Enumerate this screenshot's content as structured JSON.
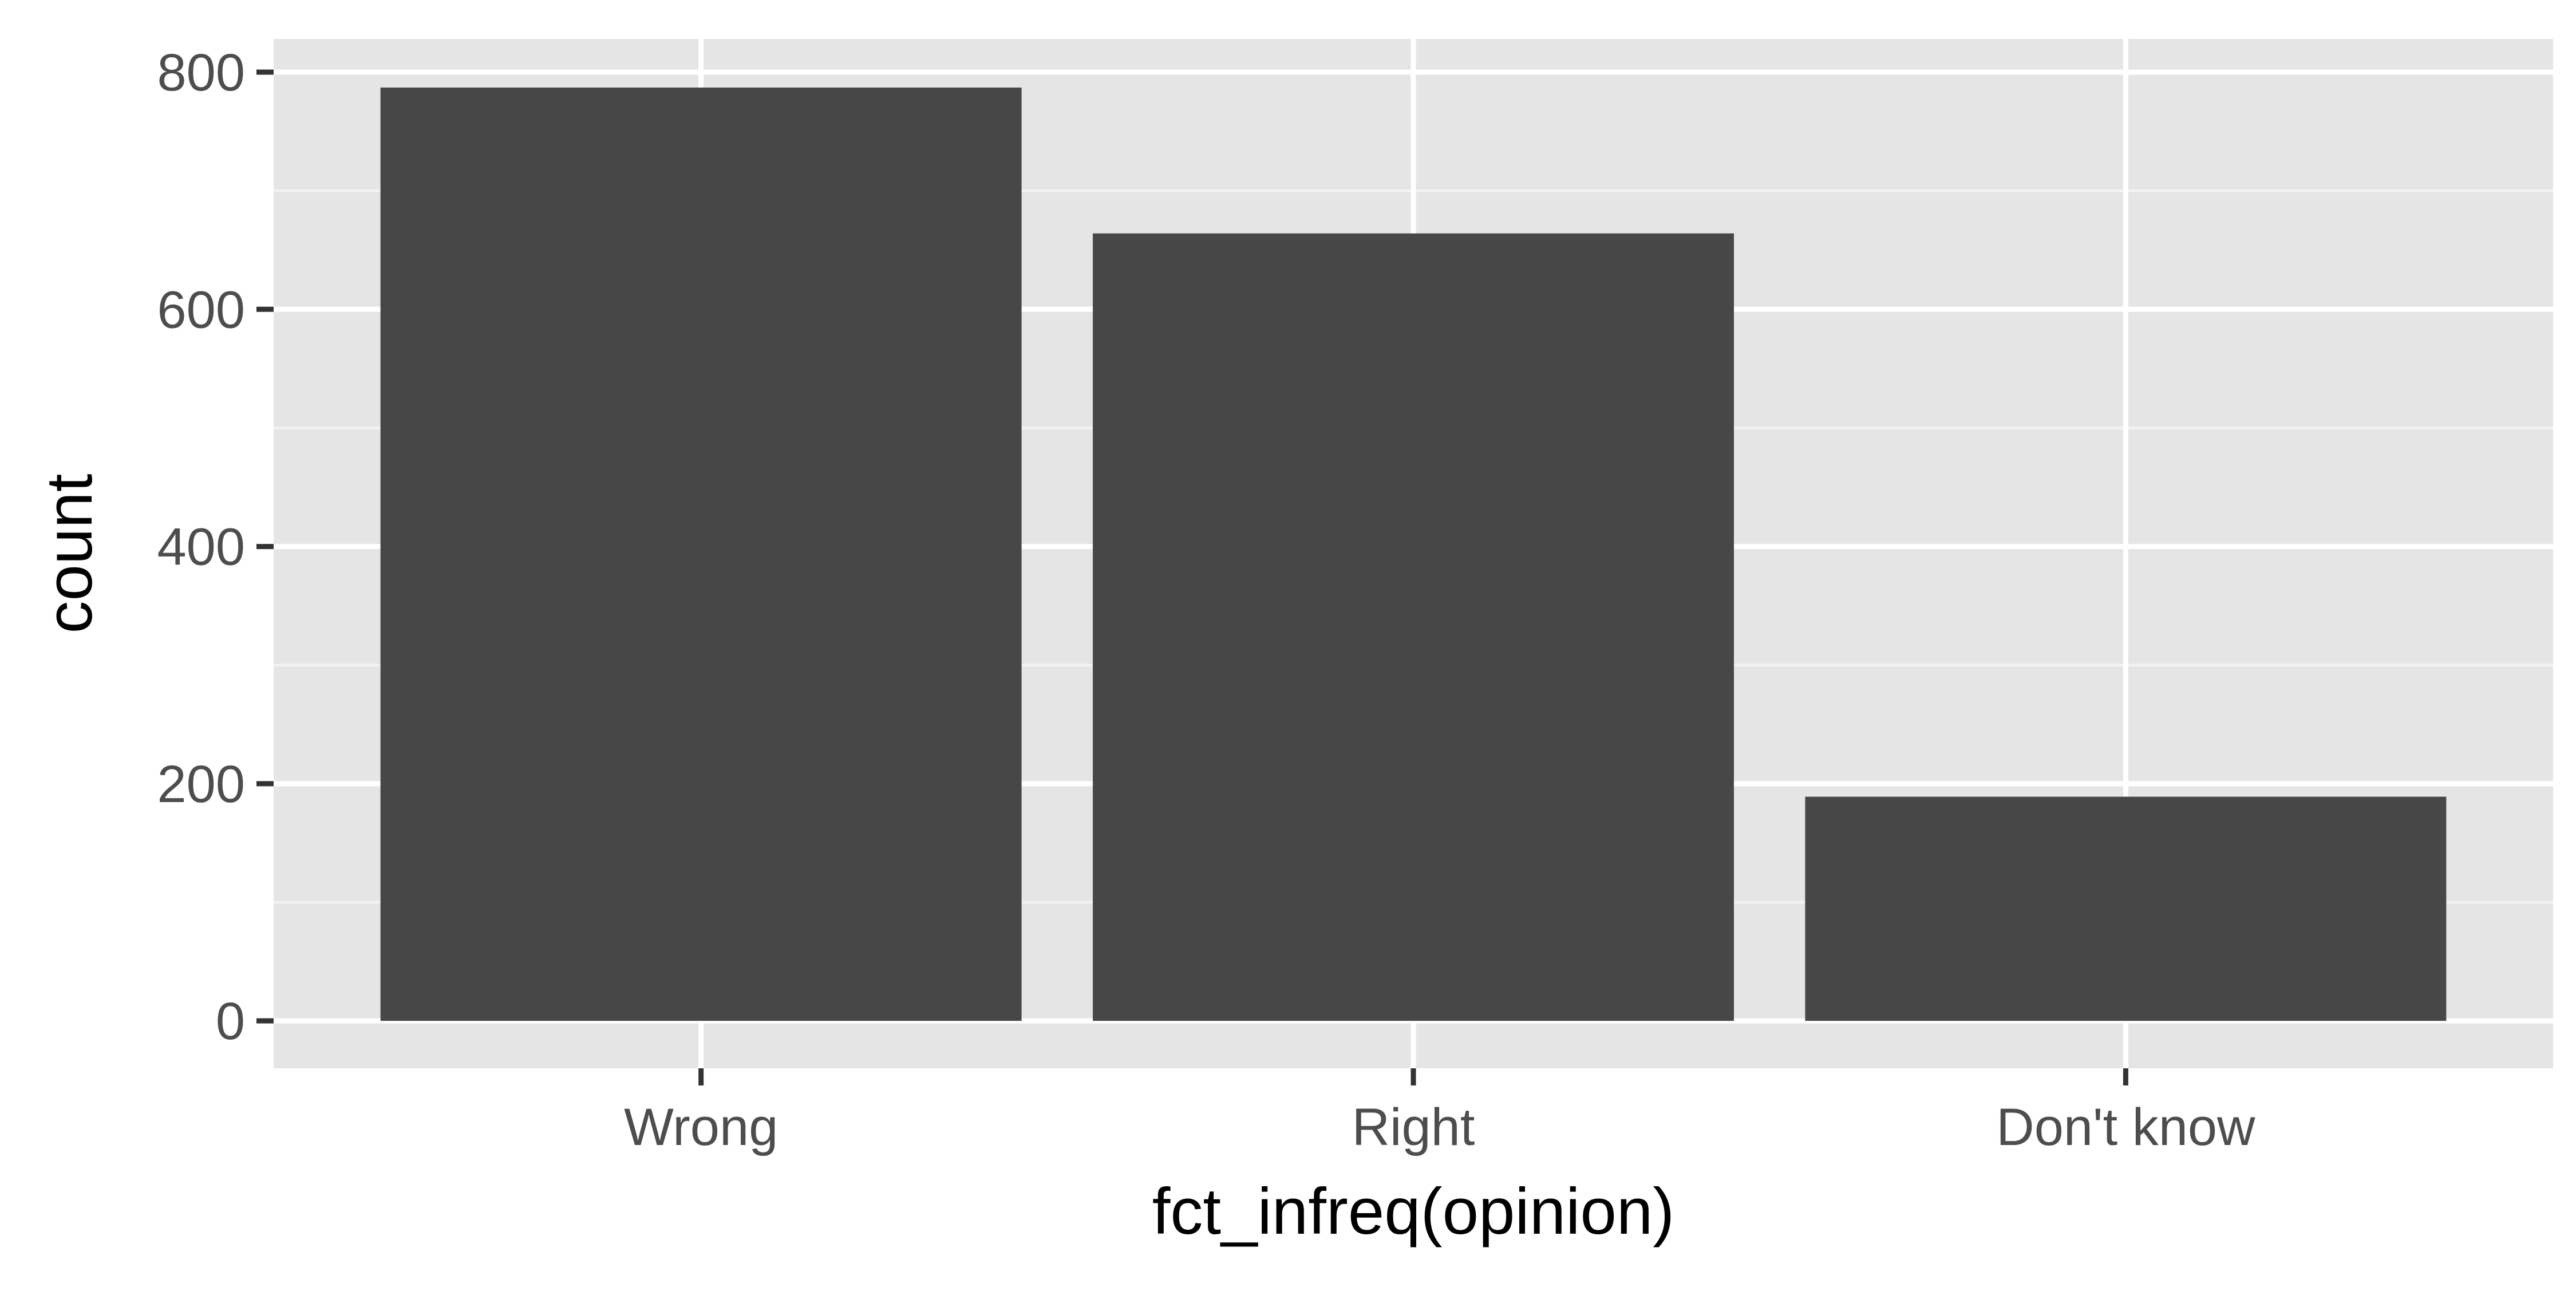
{
  "chart_data": {
    "type": "bar",
    "categories": [
      "Wrong",
      "Right",
      "Don't know"
    ],
    "values": [
      787,
      664,
      189
    ],
    "title": "",
    "xlabel": "fct_infreq(opinion)",
    "ylabel": "count",
    "ylim": [
      -40,
      828
    ],
    "yticks": [
      0,
      200,
      400,
      600,
      800
    ],
    "ytick_labels": [
      "0",
      "200",
      "400",
      "600",
      "800"
    ],
    "grid": true,
    "legend": "none",
    "colors": {
      "bar": "#474747",
      "panel": "#e5e5e5",
      "grid_major": "#ffffff",
      "grid_minor": "#f2f2f2",
      "tick_text": "#4d4d4d",
      "axis_title": "#000000"
    }
  }
}
